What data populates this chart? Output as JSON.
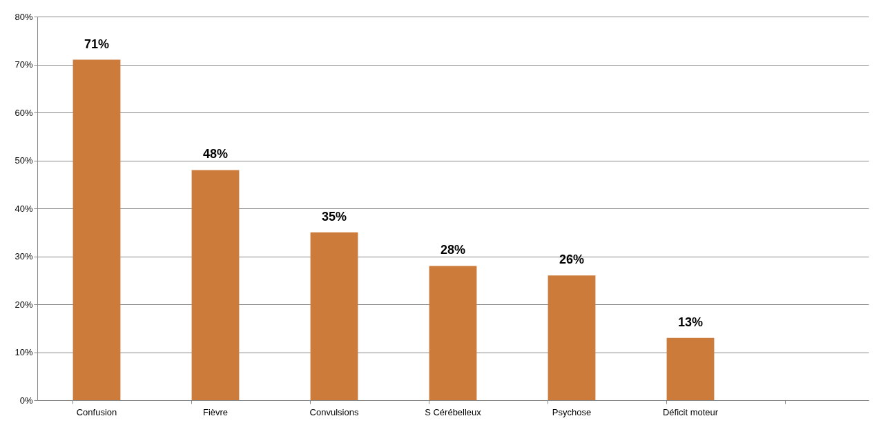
{
  "chart_data": {
    "type": "bar",
    "categories": [
      "Confusion",
      "Fièvre",
      "Convulsions",
      "S Cérébelleux",
      "Psychose",
      "Déficit moteur",
      null
    ],
    "values": [
      71,
      48,
      35,
      28,
      26,
      13,
      null
    ],
    "value_labels": [
      "71%",
      "48%",
      "35%",
      "28%",
      "26%",
      "13%",
      null
    ],
    "color": "#cd7b3a",
    "ylim": [
      0,
      80
    ],
    "yticks": [
      {
        "value": 0,
        "label": "0%"
      },
      {
        "value": 10,
        "label": "10%"
      },
      {
        "value": 20,
        "label": "20%"
      },
      {
        "value": 30,
        "label": "30%"
      },
      {
        "value": 40,
        "label": "40%"
      },
      {
        "value": 50,
        "label": "50%"
      },
      {
        "value": 60,
        "label": "60%"
      },
      {
        "value": 70,
        "label": "70%"
      },
      {
        "value": 80,
        "label": "80%"
      }
    ],
    "grid": "y"
  }
}
